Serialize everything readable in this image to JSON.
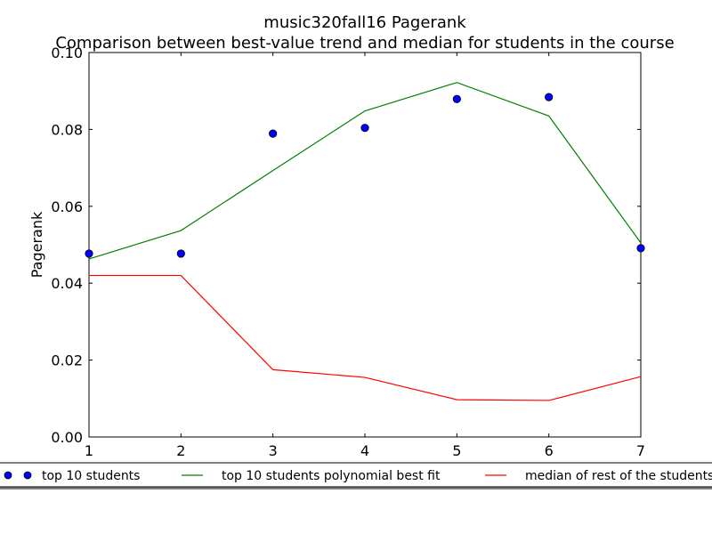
{
  "chart_data": {
    "type": "line",
    "title": "music320fall16 Pagerank",
    "subtitle": "Comparison between best-value trend and median for students in the course",
    "xlabel": "",
    "ylabel": "Pagerank",
    "xlim": [
      1,
      7
    ],
    "ylim": [
      0,
      0.1
    ],
    "x_ticks": [
      "1",
      "2",
      "3",
      "4",
      "5",
      "6",
      "7"
    ],
    "y_ticks": [
      "0.00",
      "0.02",
      "0.04",
      "0.06",
      "0.08",
      "0.10"
    ],
    "grid": false,
    "legend_position": "bottom",
    "x": [
      1,
      2,
      3,
      4,
      5,
      6,
      7
    ],
    "series": [
      {
        "name": "top 10 students",
        "kind": "scatter",
        "color": "#0000ff",
        "values": [
          0.0477,
          0.0477,
          0.0789,
          0.0804,
          0.0879,
          0.0884,
          0.0491
        ]
      },
      {
        "name": "top 10 students polynomial best fit",
        "kind": "line",
        "color": "#008000",
        "values": [
          0.0463,
          0.0537,
          0.0693,
          0.0848,
          0.0922,
          0.0835,
          0.0505
        ]
      },
      {
        "name": "median of rest of the students",
        "kind": "line",
        "color": "#ff0000",
        "values": [
          0.042,
          0.042,
          0.0175,
          0.0155,
          0.0097,
          0.0095,
          0.0157
        ]
      }
    ]
  }
}
